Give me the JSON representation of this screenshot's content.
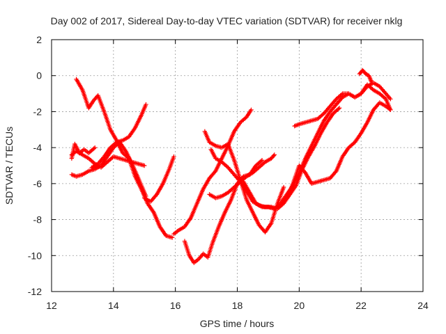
{
  "chart_data": {
    "type": "scatter",
    "title": "Day 002 of 2017, Sidereal Day-to-day VTEC variation (SDTVAR) for receiver nklg",
    "xlabel": "GPS time / hours",
    "ylabel": "SDTVAR / TECUs",
    "xlim": [
      12,
      24
    ],
    "ylim": [
      -12,
      2
    ],
    "xticks": [
      "12",
      "14",
      "16",
      "18",
      "20",
      "22",
      "24"
    ],
    "yticks": [
      "2",
      "0",
      "-2",
      "-4",
      "-6",
      "-8",
      "-10",
      "-12"
    ],
    "grid": true,
    "marker": "plus",
    "series_color": "#ff0000",
    "series": [
      {
        "x": [
          12.8,
          13.0,
          13.2,
          13.35,
          13.5,
          13.7,
          13.9,
          14.1,
          14.3,
          14.5,
          14.7,
          14.9,
          15.1,
          15.3,
          15.5,
          15.7,
          15.9
        ],
        "y": [
          -0.2,
          -0.8,
          -1.8,
          -1.4,
          -1.1,
          -2.0,
          -3.0,
          -3.6,
          -4.3,
          -4.6,
          -5.6,
          -6.3,
          -7.1,
          -7.6,
          -8.4,
          -8.9,
          -9.0
        ]
      },
      {
        "x": [
          12.65,
          12.8,
          13.0,
          13.2,
          13.4,
          13.6,
          13.8,
          14.0,
          14.2,
          14.4,
          14.6,
          14.8,
          15.05
        ],
        "y": [
          -5.5,
          -5.6,
          -5.5,
          -5.3,
          -5.2,
          -5.0,
          -4.5,
          -4.0,
          -3.7,
          -4.2,
          -4.9,
          -5.7,
          -6.7
        ]
      },
      {
        "x": [
          12.65,
          12.8,
          13.0,
          13.2,
          13.4,
          13.6,
          13.8,
          14.0,
          14.2,
          14.4,
          14.6,
          14.8,
          15.0
        ],
        "y": [
          -4.4,
          -4.2,
          -4.4,
          -4.6,
          -4.9,
          -5.1,
          -4.8,
          -4.5,
          -4.6,
          -4.7,
          -4.8,
          -4.9,
          -5.0
        ]
      },
      {
        "x": [
          12.65,
          12.75,
          12.9,
          13.05,
          13.2,
          13.4
        ],
        "y": [
          -4.6,
          -3.8,
          -4.3,
          -4.1,
          -4.3,
          -4.0
        ]
      },
      {
        "x": [
          13.3,
          13.5,
          13.7,
          13.9,
          14.1,
          14.3,
          14.5,
          14.7,
          14.9,
          15.05
        ],
        "y": [
          -5.1,
          -4.9,
          -4.5,
          -4.0,
          -3.7,
          -3.6,
          -3.4,
          -2.9,
          -2.2,
          -1.6
        ]
      },
      {
        "x": [
          15.0,
          15.2,
          15.4,
          15.6,
          15.8,
          15.95
        ],
        "y": [
          -6.8,
          -7.0,
          -6.6,
          -6.0,
          -5.2,
          -4.5
        ]
      },
      {
        "x": [
          15.95,
          16.1,
          16.3,
          16.5,
          16.7,
          16.9,
          17.1,
          17.3,
          17.5,
          17.7,
          17.9,
          18.1,
          18.3,
          18.45
        ],
        "y": [
          -8.8,
          -8.6,
          -8.4,
          -7.9,
          -7.1,
          -6.3,
          -5.7,
          -5.3,
          -4.6,
          -3.9,
          -3.1,
          -2.6,
          -2.3,
          -1.9
        ]
      },
      {
        "x": [
          16.3,
          16.45,
          16.6,
          16.75,
          16.9,
          17.05,
          17.2,
          17.4,
          17.6,
          17.8,
          18.0,
          18.2,
          18.4,
          18.6,
          18.8
        ],
        "y": [
          -9.2,
          -10.0,
          -10.4,
          -10.2,
          -9.9,
          -10.1,
          -9.3,
          -8.4,
          -7.6,
          -6.9,
          -6.0,
          -5.6,
          -5.5,
          -5.0,
          -4.7
        ]
      },
      {
        "x": [
          16.95,
          17.1,
          17.3,
          17.5,
          17.7,
          17.9,
          18.1,
          18.3,
          18.5,
          18.7,
          18.9,
          19.1,
          19.3,
          19.5
        ],
        "y": [
          -3.1,
          -3.7,
          -3.9,
          -4.0,
          -3.8,
          -4.7,
          -5.8,
          -6.9,
          -7.6,
          -8.3,
          -8.7,
          -8.2,
          -7.1,
          -6.2
        ]
      },
      {
        "x": [
          17.15,
          17.3,
          17.5,
          17.7,
          17.9,
          18.1,
          18.3,
          18.5,
          18.7,
          18.9,
          19.1,
          19.3,
          19.5,
          19.7,
          19.9,
          20.1,
          20.3,
          20.5,
          20.7,
          20.9,
          21.1,
          21.3
        ],
        "y": [
          -4.1,
          -4.6,
          -4.8,
          -5.1,
          -5.5,
          -5.9,
          -6.4,
          -7.0,
          -7.2,
          -7.3,
          -7.3,
          -7.4,
          -7.1,
          -6.6,
          -6.1,
          -5.2,
          -4.5,
          -3.9,
          -3.2,
          -2.6,
          -2.1,
          -1.8
        ]
      },
      {
        "x": [
          17.1,
          17.3,
          17.5,
          17.7,
          17.9,
          18.1,
          18.3,
          18.5,
          18.7,
          18.9,
          19.1,
          19.2
        ],
        "y": [
          -6.6,
          -6.8,
          -6.7,
          -6.5,
          -6.2,
          -5.9,
          -5.6,
          -5.4,
          -5.1,
          -4.8,
          -4.6,
          -4.4
        ]
      },
      {
        "x": [
          18.2,
          18.4,
          18.6,
          18.8,
          19.0,
          19.2,
          19.4,
          19.6,
          19.8,
          20.0,
          20.2,
          20.4,
          20.6,
          20.8,
          21.0,
          21.2,
          21.4,
          21.6,
          21.8,
          22.0,
          22.2,
          22.4,
          22.6,
          22.8,
          22.95
        ],
        "y": [
          -5.9,
          -6.5,
          -7.1,
          -7.3,
          -7.3,
          -7.4,
          -7.1,
          -6.6,
          -6.1,
          -5.4,
          -4.6,
          -3.9,
          -3.2,
          -2.5,
          -2.0,
          -1.6,
          -1.2,
          -1.0,
          -1.2,
          -1.0,
          -0.5,
          -0.8,
          -1.0,
          -1.3,
          -1.9
        ]
      },
      {
        "x": [
          19.85,
          20.0,
          20.2,
          20.4,
          20.6,
          20.8,
          21.0,
          21.2,
          21.4,
          21.6,
          21.8,
          22.0,
          22.2,
          22.4,
          22.6,
          22.8,
          22.95
        ],
        "y": [
          -2.8,
          -2.7,
          -2.6,
          -2.5,
          -2.4,
          -2.1,
          -1.7,
          -1.3,
          -1.0,
          -1.0,
          -1.2,
          -1.0,
          -0.6,
          -0.4,
          -0.6,
          -1.0,
          -1.3
        ]
      },
      {
        "x": [
          19.4,
          19.6,
          19.8,
          20.0,
          20.2,
          20.4,
          20.6,
          20.8,
          21.0,
          21.2,
          21.4,
          21.6,
          21.8,
          22.0,
          22.2,
          22.4,
          22.6,
          22.8,
          22.95
        ],
        "y": [
          -7.2,
          -6.8,
          -6.0,
          -5.0,
          -5.4,
          -6.0,
          -5.9,
          -5.8,
          -5.7,
          -5.3,
          -4.5,
          -4.0,
          -3.7,
          -3.2,
          -2.6,
          -1.9,
          -1.5,
          -1.7,
          -1.9
        ]
      },
      {
        "x": [
          21.95,
          22.05,
          22.15,
          22.25,
          22.35
        ],
        "y": [
          0.1,
          0.3,
          0.1,
          0.0,
          -0.4
        ]
      }
    ]
  }
}
